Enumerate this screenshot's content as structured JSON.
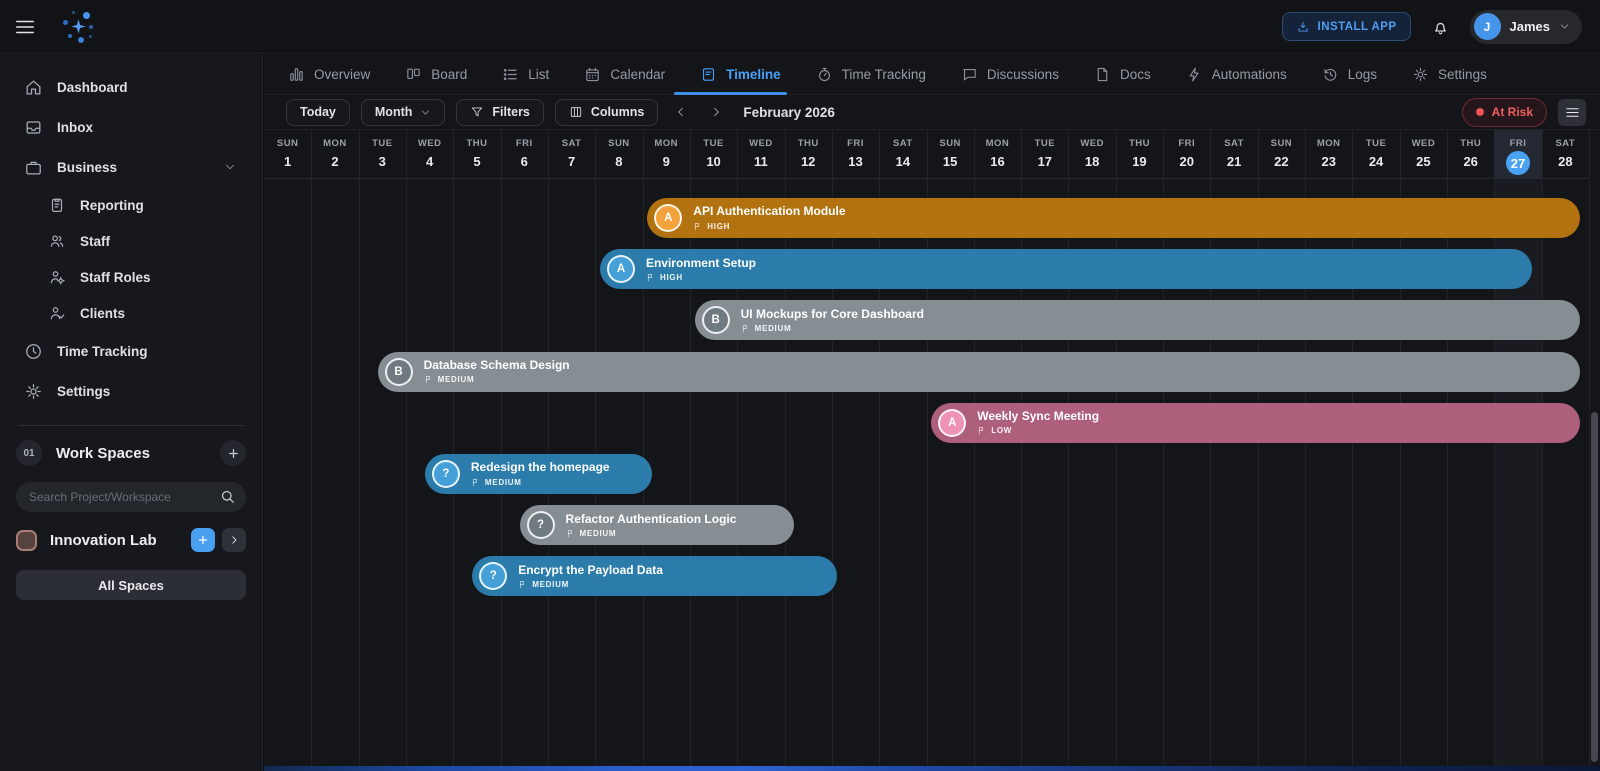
{
  "topbar": {
    "install_app_label": "INSTALL APP",
    "user_name": "James",
    "user_initial": "J"
  },
  "sidebar": {
    "items": [
      {
        "id": "dashboard",
        "label": "Dashboard",
        "icon": "house",
        "sub": false,
        "chevron": false
      },
      {
        "id": "inbox",
        "label": "Inbox",
        "icon": "inbox",
        "sub": false,
        "chevron": false
      },
      {
        "id": "business",
        "label": "Business",
        "icon": "briefcase",
        "sub": false,
        "chevron": true
      },
      {
        "id": "reporting",
        "label": "Reporting",
        "icon": "clipboard",
        "sub": true,
        "chevron": false
      },
      {
        "id": "staff",
        "label": "Staff",
        "icon": "people",
        "sub": true,
        "chevron": false
      },
      {
        "id": "staff-roles",
        "label": "Staff Roles",
        "icon": "person-gear",
        "sub": true,
        "chevron": false
      },
      {
        "id": "clients",
        "label": "Clients",
        "icon": "person-check",
        "sub": true,
        "chevron": false
      },
      {
        "id": "time-tracking",
        "label": "Time Tracking",
        "icon": "clock",
        "sub": false,
        "chevron": false
      },
      {
        "id": "settings",
        "label": "Settings",
        "icon": "gear",
        "sub": false,
        "chevron": false
      }
    ],
    "workspaces": {
      "count_badge": "01",
      "title": "Work Spaces",
      "search_placeholder": "Search Project/Workspace",
      "workspace_name": "Innovation Lab",
      "all_spaces_label": "All Spaces"
    }
  },
  "tabs": [
    {
      "id": "overview",
      "label": "Overview",
      "icon": "chart-bars",
      "active": false
    },
    {
      "id": "board",
      "label": "Board",
      "icon": "board",
      "active": false
    },
    {
      "id": "list",
      "label": "List",
      "icon": "list",
      "active": false
    },
    {
      "id": "calendar",
      "label": "Calendar",
      "icon": "calendar",
      "active": false
    },
    {
      "id": "timeline",
      "label": "Timeline",
      "icon": "timeline-doc",
      "active": true
    },
    {
      "id": "time-tracking",
      "label": "Time Tracking",
      "icon": "stopwatch",
      "active": false
    },
    {
      "id": "discussions",
      "label": "Discussions",
      "icon": "chat",
      "active": false
    },
    {
      "id": "docs",
      "label": "Docs",
      "icon": "doc",
      "active": false
    },
    {
      "id": "automations",
      "label": "Automations",
      "icon": "bolt",
      "active": false
    },
    {
      "id": "logs",
      "label": "Logs",
      "icon": "history",
      "active": false
    },
    {
      "id": "settings",
      "label": "Settings",
      "icon": "gear",
      "active": false
    }
  ],
  "toolbar": {
    "today_label": "Today",
    "range_label": "Month",
    "filters_label": "Filters",
    "columns_label": "Columns",
    "month_label": "February 2026",
    "status_badge": "At Risk"
  },
  "timeline": {
    "today_num": 27,
    "days": [
      {
        "dow": "SUN",
        "num": 1
      },
      {
        "dow": "MON",
        "num": 2
      },
      {
        "dow": "TUE",
        "num": 3
      },
      {
        "dow": "WED",
        "num": 4
      },
      {
        "dow": "THU",
        "num": 5
      },
      {
        "dow": "FRI",
        "num": 6
      },
      {
        "dow": "SAT",
        "num": 7
      },
      {
        "dow": "SUN",
        "num": 8
      },
      {
        "dow": "MON",
        "num": 9
      },
      {
        "dow": "TUE",
        "num": 10
      },
      {
        "dow": "WED",
        "num": 11
      },
      {
        "dow": "THU",
        "num": 12
      },
      {
        "dow": "FRI",
        "num": 13
      },
      {
        "dow": "SAT",
        "num": 14
      },
      {
        "dow": "SUN",
        "num": 15
      },
      {
        "dow": "MON",
        "num": 16
      },
      {
        "dow": "TUE",
        "num": 17
      },
      {
        "dow": "WED",
        "num": 18
      },
      {
        "dow": "THU",
        "num": 19
      },
      {
        "dow": "FRI",
        "num": 20
      },
      {
        "dow": "SAT",
        "num": 21
      },
      {
        "dow": "SUN",
        "num": 22
      },
      {
        "dow": "MON",
        "num": 23
      },
      {
        "dow": "TUE",
        "num": 24
      },
      {
        "dow": "WED",
        "num": 25
      },
      {
        "dow": "THU",
        "num": 26
      },
      {
        "dow": "FRI",
        "num": 27
      },
      {
        "dow": "SAT",
        "num": 28
      }
    ]
  },
  "chart_data": {
    "type": "gantt",
    "title": "February 2026",
    "unit": "day of February 2026",
    "day_range": [
      1,
      28
    ],
    "tasks": [
      {
        "row": 1,
        "name": "API Authentication Module",
        "priority": "HIGH",
        "assignee": "A",
        "color": "orange",
        "start_day": 9.1,
        "end_day": 28.8
      },
      {
        "row": 2,
        "name": "Environment Setup",
        "priority": "HIGH",
        "assignee": "A",
        "color": "blue",
        "start_day": 8.1,
        "end_day": 27.8
      },
      {
        "row": 3,
        "name": "UI Mockups for Core Dashboard",
        "priority": "MEDIUM",
        "assignee": "B",
        "color": "gray",
        "start_day": 10.1,
        "end_day": 28.8
      },
      {
        "row": 4,
        "name": "Database Schema Design",
        "priority": "MEDIUM",
        "assignee": "B",
        "color": "gray",
        "start_day": 3.4,
        "end_day": 28.8
      },
      {
        "row": 5,
        "name": "Weekly Sync Meeting",
        "priority": "LOW",
        "assignee": "A",
        "color": "pink",
        "start_day": 15.1,
        "end_day": 28.8
      },
      {
        "row": 6,
        "name": "Redesign the homepage",
        "priority": "MEDIUM",
        "assignee": "?",
        "color": "blue",
        "start_day": 4.4,
        "end_day": 9.2
      },
      {
        "row": 7,
        "name": "Refactor Authentication Logic",
        "priority": "MEDIUM",
        "assignee": "?",
        "color": "gray",
        "start_day": 6.4,
        "end_day": 12.2
      },
      {
        "row": 8,
        "name": "Encrypt the Payload Data",
        "priority": "MEDIUM",
        "assignee": "?",
        "color": "blue",
        "start_day": 5.4,
        "end_day": 13.1
      }
    ],
    "bar_colors": {
      "orange": "#b1720f",
      "blue": "#2b7cab",
      "gray": "#868e94",
      "pink": "#ad5f7c"
    },
    "avatar_colors": {
      "orange": "#f2a33c",
      "blue": "#45a0d8",
      "gray": "#6f7a81",
      "pink": "#ef93b6"
    },
    "accent_color": "#44a0f7",
    "risk_color": "#ef5350"
  },
  "icon_names": [
    "menu-icon",
    "sparkle-logo-icon",
    "download-icon",
    "bell-icon",
    "chevron-down-icon",
    "chevron-left-icon",
    "chevron-right-icon",
    "funnel-icon",
    "columns-icon",
    "search-icon",
    "plus-icon",
    "flag-icon",
    "lines-icon"
  ]
}
